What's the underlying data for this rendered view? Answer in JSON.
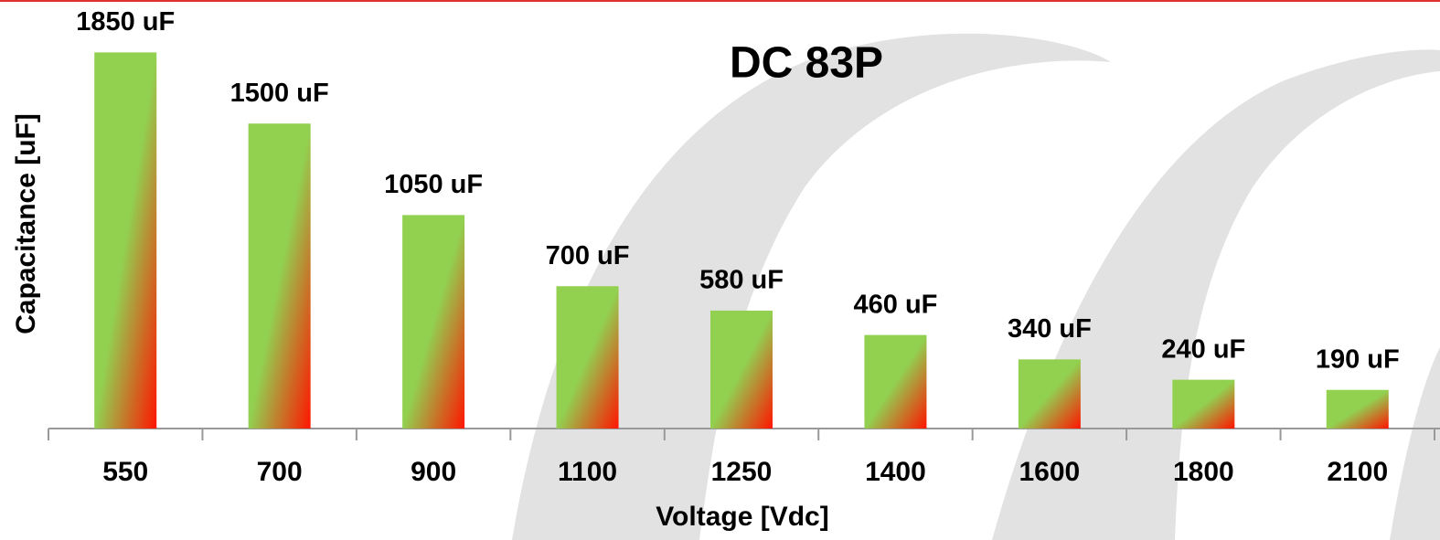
{
  "chart_data": {
    "type": "bar",
    "title": "DC 83P",
    "x_label": "Voltage [Vdc]",
    "y_label": "Capacitance [uF]",
    "categories": [
      "550",
      "700",
      "900",
      "1100",
      "1250",
      "1400",
      "1600",
      "1800",
      "2100"
    ],
    "values": [
      1850,
      1500,
      1050,
      700,
      580,
      460,
      340,
      240,
      190
    ],
    "value_labels": [
      "1850 uF",
      "1500 uF",
      "1050 uF",
      "700 uF",
      "580 uF",
      "460 uF",
      "340 uF",
      "240 uF",
      "190 uF"
    ],
    "color": "#92d050",
    "gradient_color": "#ff1500",
    "ylim": [
      0,
      2000
    ],
    "grid": false
  }
}
